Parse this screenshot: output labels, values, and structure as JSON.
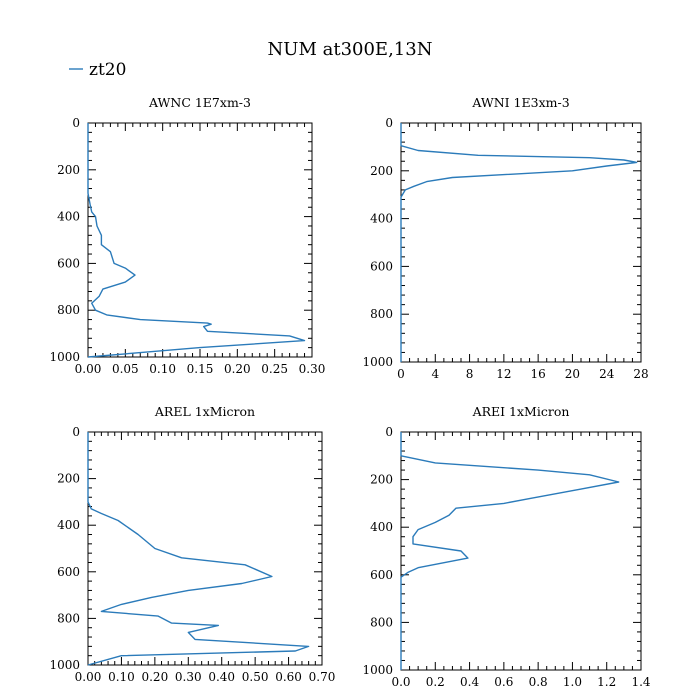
{
  "figure": {
    "title": "NUM at300E,13N",
    "legend": {
      "label": "zt20",
      "color": "#2b7bba"
    }
  },
  "chart_data": [
    {
      "type": "line",
      "title": "AWNC  1E7xm-3",
      "series": [
        {
          "name": "zt20",
          "x": [
            0.0,
            0.0,
            0.003,
            0.005,
            0.01,
            0.012,
            0.018,
            0.018,
            0.03,
            0.035,
            0.05,
            0.063,
            0.05,
            0.02,
            0.015,
            0.005,
            0.01,
            0.025,
            0.07,
            0.16,
            0.165,
            0.155,
            0.16,
            0.27,
            0.29,
            0.15,
            0.0
          ],
          "y": [
            0,
            300,
            350,
            380,
            400,
            440,
            480,
            520,
            550,
            600,
            620,
            650,
            680,
            710,
            740,
            770,
            800,
            820,
            840,
            855,
            860,
            870,
            890,
            910,
            930,
            960,
            1000
          ]
        }
      ],
      "xlim": [
        0.0,
        0.3
      ],
      "ylim": [
        0,
        1000
      ],
      "y_inverted": true,
      "xticks": [
        0.0,
        0.05,
        0.1,
        0.15,
        0.2,
        0.25,
        0.3
      ],
      "xtick_labels": [
        "0.00",
        "0.05",
        "0.10",
        "0.15",
        "0.20",
        "0.25",
        "0.30"
      ],
      "yticks": [
        0,
        200,
        400,
        600,
        800,
        1000
      ],
      "ytick_labels": [
        "0",
        "200",
        "400",
        "600",
        "800",
        "1000"
      ],
      "x_minor_per": 5,
      "y_minor_per": 5
    },
    {
      "type": "line",
      "title": "AWNI  1E3xm-3",
      "series": [
        {
          "name": "zt20",
          "x": [
            0,
            0,
            2,
            9,
            22,
            26,
            27.5,
            24,
            20,
            6,
            3,
            1.5,
            0.5,
            0,
            0
          ],
          "y": [
            0,
            95,
            115,
            135,
            145,
            155,
            165,
            180,
            200,
            228,
            245,
            265,
            280,
            310,
            1000
          ]
        }
      ],
      "xlim": [
        0,
        28
      ],
      "ylim": [
        0,
        1000
      ],
      "y_inverted": true,
      "xticks": [
        0,
        4,
        8,
        12,
        16,
        20,
        24,
        28
      ],
      "xtick_labels": [
        "0",
        "4",
        "8",
        "12",
        "16",
        "20",
        "24",
        "28"
      ],
      "yticks": [
        0,
        200,
        400,
        600,
        800,
        1000
      ],
      "ytick_labels": [
        "0",
        "200",
        "400",
        "600",
        "800",
        "1000"
      ],
      "x_minor_per": 4,
      "y_minor_per": 5
    },
    {
      "type": "line",
      "title": "AREL  1xMicron",
      "series": [
        {
          "name": "zt20",
          "x": [
            0.0,
            0.0,
            0.01,
            0.04,
            0.09,
            0.15,
            0.2,
            0.28,
            0.47,
            0.55,
            0.46,
            0.3,
            0.19,
            0.1,
            0.04,
            0.21,
            0.25,
            0.39,
            0.3,
            0.32,
            0.66,
            0.62,
            0.1,
            0.0
          ],
          "y": [
            0,
            300,
            330,
            350,
            380,
            440,
            500,
            540,
            570,
            620,
            650,
            680,
            710,
            740,
            770,
            790,
            820,
            830,
            860,
            890,
            920,
            940,
            960,
            1000
          ]
        }
      ],
      "xlim": [
        0.0,
        0.7
      ],
      "ylim": [
        0,
        1000
      ],
      "y_inverted": true,
      "xticks": [
        0.0,
        0.1,
        0.2,
        0.3,
        0.4,
        0.5,
        0.6,
        0.7
      ],
      "xtick_labels": [
        "0.00",
        "0.10",
        "0.20",
        "0.30",
        "0.40",
        "0.50",
        "0.60",
        "0.70"
      ],
      "yticks": [
        0,
        200,
        400,
        600,
        800,
        1000
      ],
      "ytick_labels": [
        "0",
        "200",
        "400",
        "600",
        "800",
        "1000"
      ],
      "x_minor_per": 5,
      "y_minor_per": 5
    },
    {
      "type": "line",
      "title": "AREI  1xMicron",
      "series": [
        {
          "name": "zt20",
          "x": [
            0.0,
            0.0,
            0.2,
            0.8,
            1.1,
            1.27,
            1.05,
            0.75,
            0.6,
            0.32,
            0.28,
            0.2,
            0.1,
            0.07,
            0.07,
            0.35,
            0.39,
            0.1,
            0.04,
            0.0,
            0.0
          ],
          "y": [
            0,
            100,
            130,
            160,
            180,
            210,
            240,
            280,
            300,
            320,
            350,
            380,
            410,
            440,
            470,
            500,
            530,
            570,
            590,
            610,
            1000
          ]
        }
      ],
      "xlim": [
        0.0,
        1.4
      ],
      "ylim": [
        0,
        1000
      ],
      "y_inverted": true,
      "xticks": [
        0.0,
        0.2,
        0.4,
        0.6,
        0.8,
        1.0,
        1.2,
        1.4
      ],
      "xtick_labels": [
        "0.0",
        "0.2",
        "0.4",
        "0.6",
        "0.8",
        "1.0",
        "1.2",
        "1.4"
      ],
      "yticks": [
        0,
        200,
        400,
        600,
        800,
        1000
      ],
      "ytick_labels": [
        "0",
        "200",
        "400",
        "600",
        "800",
        "1000"
      ],
      "x_minor_per": 4,
      "y_minor_per": 5
    }
  ]
}
